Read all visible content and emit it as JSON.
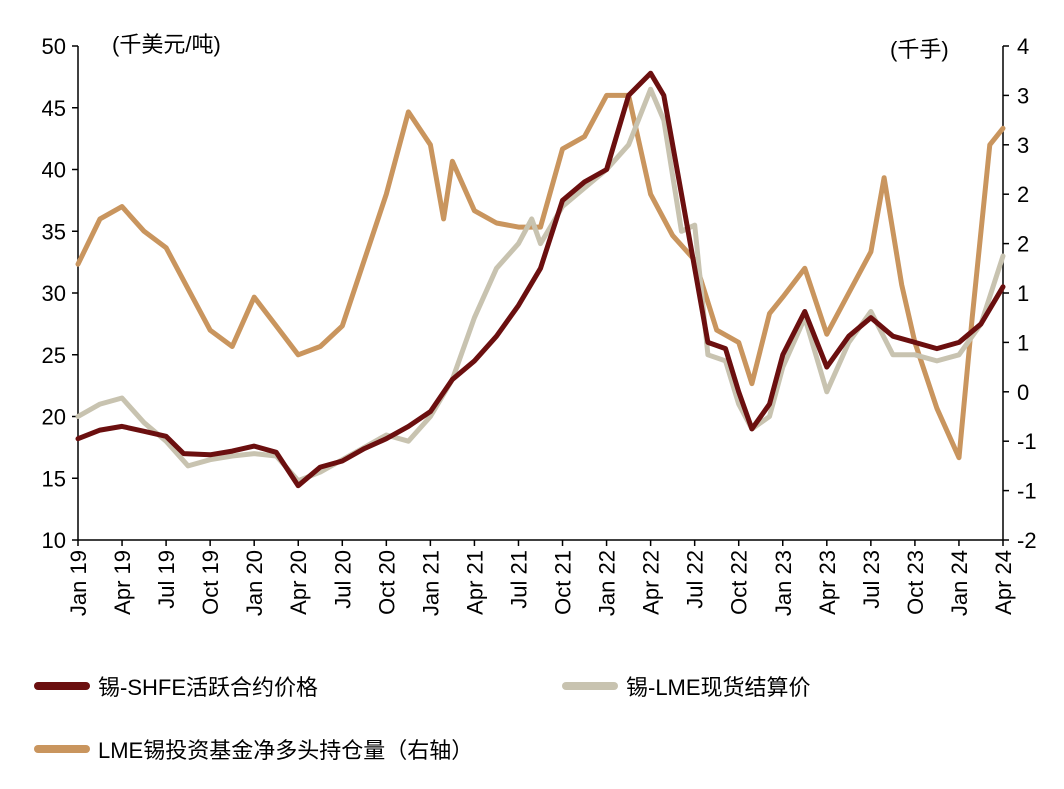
{
  "chart_data": {
    "type": "line",
    "left_unit": "(千美元/吨)",
    "right_unit": "(千手)",
    "x_ticks": [
      "Jan 19",
      "Apr 19",
      "Jul 19",
      "Oct 19",
      "Jan 20",
      "Apr 20",
      "Jul 20",
      "Oct 20",
      "Jan 21",
      "Apr 21",
      "Jul 21",
      "Oct 21",
      "Jan 22",
      "Apr 22",
      "Jul 22",
      "Oct 22",
      "Jan 23",
      "Apr 23",
      "Jul 23",
      "Oct 23",
      "Jan 24",
      "Apr 24"
    ],
    "y_left_ticks": [
      "50",
      "45",
      "40",
      "35",
      "30",
      "25",
      "20",
      "15",
      "10"
    ],
    "y_right_ticks": [
      "4",
      "3",
      "3",
      "2",
      "2",
      "1",
      "1",
      "0",
      "-1",
      "-1",
      "-2"
    ],
    "ylim_left": [
      10,
      50
    ],
    "ylim_right": [
      -2,
      4
    ],
    "x_index_range": [
      0,
      21
    ],
    "series": [
      {
        "name": "锡-SHFE活跃合约价格",
        "color": "#6b0f0f",
        "axis": "left",
        "points": [
          [
            0,
            18.2
          ],
          [
            0.5,
            18.9
          ],
          [
            1,
            19.2
          ],
          [
            1.5,
            18.8
          ],
          [
            2,
            18.4
          ],
          [
            2.4,
            17.0
          ],
          [
            3,
            16.9
          ],
          [
            3.5,
            17.2
          ],
          [
            4,
            17.6
          ],
          [
            4.5,
            17.1
          ],
          [
            5,
            14.4
          ],
          [
            5.5,
            15.9
          ],
          [
            6,
            16.4
          ],
          [
            6.5,
            17.4
          ],
          [
            7,
            18.2
          ],
          [
            7.5,
            19.2
          ],
          [
            8,
            20.4
          ],
          [
            8.5,
            23.0
          ],
          [
            9,
            24.5
          ],
          [
            9.5,
            26.5
          ],
          [
            10,
            29.0
          ],
          [
            10.5,
            32.0
          ],
          [
            11,
            37.5
          ],
          [
            11.5,
            39.0
          ],
          [
            12,
            40.0
          ],
          [
            12.5,
            46.0
          ],
          [
            13,
            47.8
          ],
          [
            13.3,
            46.0
          ],
          [
            13.7,
            38.0
          ],
          [
            14,
            32.0
          ],
          [
            14.3,
            26.0
          ],
          [
            14.7,
            25.5
          ],
          [
            15,
            22.0
          ],
          [
            15.3,
            19.0
          ],
          [
            15.7,
            21.0
          ],
          [
            16,
            25.0
          ],
          [
            16.5,
            28.5
          ],
          [
            17,
            24.0
          ],
          [
            17.5,
            26.5
          ],
          [
            18,
            28.0
          ],
          [
            18.5,
            26.5
          ],
          [
            19,
            26.0
          ],
          [
            19.5,
            25.5
          ],
          [
            20,
            26.0
          ],
          [
            20.5,
            27.5
          ],
          [
            21,
            30.5
          ]
        ]
      },
      {
        "name": "锡-LME现货结算价",
        "color": "#c8c3b0",
        "axis": "left",
        "points": [
          [
            0,
            20.0
          ],
          [
            0.5,
            21.0
          ],
          [
            1,
            21.5
          ],
          [
            1.5,
            19.5
          ],
          [
            2,
            18.0
          ],
          [
            2.5,
            16.0
          ],
          [
            3,
            16.5
          ],
          [
            3.5,
            16.8
          ],
          [
            4,
            17.0
          ],
          [
            4.5,
            16.8
          ],
          [
            5,
            14.8
          ],
          [
            5.5,
            15.5
          ],
          [
            6,
            16.5
          ],
          [
            6.5,
            17.5
          ],
          [
            7,
            18.5
          ],
          [
            7.5,
            18.0
          ],
          [
            8,
            20.0
          ],
          [
            8.5,
            23.0
          ],
          [
            9,
            28.0
          ],
          [
            9.5,
            32.0
          ],
          [
            10,
            34.0
          ],
          [
            10.3,
            36.0
          ],
          [
            10.5,
            34.0
          ],
          [
            11,
            37.0
          ],
          [
            11.5,
            38.5
          ],
          [
            12,
            40.0
          ],
          [
            12.5,
            42.0
          ],
          [
            13,
            46.5
          ],
          [
            13.3,
            44.0
          ],
          [
            13.7,
            35.0
          ],
          [
            14,
            35.5
          ],
          [
            14.3,
            25.0
          ],
          [
            14.7,
            24.5
          ],
          [
            15,
            21.0
          ],
          [
            15.3,
            19.0
          ],
          [
            15.7,
            20.0
          ],
          [
            16,
            24.0
          ],
          [
            16.5,
            28.0
          ],
          [
            17,
            22.0
          ],
          [
            17.5,
            26.0
          ],
          [
            18,
            28.5
          ],
          [
            18.5,
            25.0
          ],
          [
            19,
            25.0
          ],
          [
            19.5,
            24.5
          ],
          [
            20,
            25.0
          ],
          [
            20.5,
            27.5
          ],
          [
            21,
            33.0
          ]
        ]
      },
      {
        "name": "LME锡投资基金净多头持仓量（右轴）",
        "color": "#c9955e",
        "axis": "right",
        "points": [
          [
            0,
            1.35
          ],
          [
            0.5,
            1.9
          ],
          [
            1,
            2.05
          ],
          [
            1.5,
            1.75
          ],
          [
            2,
            1.55
          ],
          [
            2.5,
            1.05
          ],
          [
            3,
            0.55
          ],
          [
            3.5,
            0.35
          ],
          [
            4,
            0.95
          ],
          [
            4.5,
            0.6
          ],
          [
            5,
            0.25
          ],
          [
            5.5,
            0.35
          ],
          [
            6,
            0.6
          ],
          [
            6.5,
            1.4
          ],
          [
            7,
            2.2
          ],
          [
            7.5,
            3.2
          ],
          [
            8,
            2.8
          ],
          [
            8.3,
            1.9
          ],
          [
            8.5,
            2.6
          ],
          [
            9,
            2.0
          ],
          [
            9.5,
            1.85
          ],
          [
            10,
            1.8
          ],
          [
            10.5,
            1.8
          ],
          [
            11,
            2.75
          ],
          [
            11.5,
            2.9
          ],
          [
            12,
            3.4
          ],
          [
            12.5,
            3.4
          ],
          [
            13,
            2.2
          ],
          [
            13.5,
            1.7
          ],
          [
            14,
            1.4
          ],
          [
            14.5,
            0.55
          ],
          [
            15,
            0.4
          ],
          [
            15.3,
            -0.1
          ],
          [
            15.7,
            0.75
          ],
          [
            16,
            0.95
          ],
          [
            16.5,
            1.3
          ],
          [
            17,
            0.5
          ],
          [
            17.5,
            1.0
          ],
          [
            18,
            1.5
          ],
          [
            18.3,
            2.4
          ],
          [
            18.7,
            1.1
          ],
          [
            19,
            0.4
          ],
          [
            19.5,
            -0.4
          ],
          [
            20,
            -1.0
          ],
          [
            20.3,
            0.7
          ],
          [
            20.7,
            2.8
          ],
          [
            21,
            3.0
          ]
        ]
      }
    ]
  },
  "legend": [
    {
      "label": "锡-SHFE活跃合约价格",
      "color": "#6b0f0f"
    },
    {
      "label": "锡-LME现货结算价",
      "color": "#c8c3b0"
    },
    {
      "label": "LME锡投资基金净多头持仓量（右轴）",
      "color": "#c9955e"
    }
  ]
}
